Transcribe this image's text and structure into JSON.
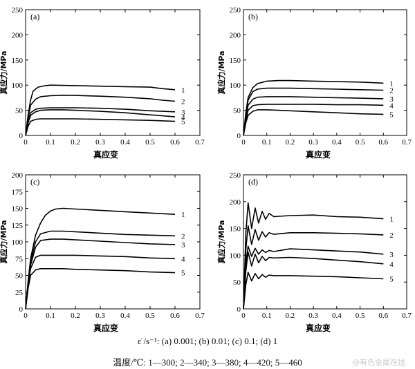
{
  "chart_data": [
    {
      "type": "line",
      "panel_label": "(a)",
      "xlabel": "真应变",
      "ylabel": "真应力/MPa",
      "xlim": [
        0,
        0.7
      ],
      "ylim": [
        0,
        250
      ],
      "xticks": [
        "0",
        "0.1",
        "0.2",
        "0.3",
        "0.4",
        "0.5",
        "0.6",
        "0.7"
      ],
      "yticks": [
        "0",
        "50",
        "100",
        "150",
        "200",
        "250"
      ],
      "series": [
        {
          "name": "1",
          "x": [
            0,
            0.01,
            0.02,
            0.03,
            0.05,
            0.08,
            0.1,
            0.15,
            0.2,
            0.3,
            0.4,
            0.5,
            0.55,
            0.6
          ],
          "y": [
            0,
            40,
            70,
            88,
            96,
            99,
            100,
            99.5,
            99,
            98,
            97,
            96,
            93,
            91
          ]
        },
        {
          "name": "2",
          "x": [
            0,
            0.01,
            0.02,
            0.04,
            0.06,
            0.1,
            0.15,
            0.2,
            0.3,
            0.4,
            0.5,
            0.55,
            0.6
          ],
          "y": [
            0,
            35,
            60,
            72,
            77,
            79,
            80,
            79.5,
            78,
            76,
            73,
            70,
            68
          ]
        },
        {
          "name": "3",
          "x": [
            0,
            0.01,
            0.02,
            0.04,
            0.06,
            0.1,
            0.15,
            0.2,
            0.3,
            0.4,
            0.5,
            0.6
          ],
          "y": [
            0,
            28,
            45,
            52,
            54,
            55,
            55,
            55,
            54,
            52,
            49,
            47
          ]
        },
        {
          "name": "4",
          "x": [
            0,
            0.01,
            0.02,
            0.04,
            0.06,
            0.1,
            0.15,
            0.2,
            0.3,
            0.4,
            0.5,
            0.55,
            0.6
          ],
          "y": [
            0,
            25,
            40,
            47,
            50,
            51,
            51,
            50,
            48,
            45,
            41,
            39,
            37
          ]
        },
        {
          "name": "5",
          "x": [
            0,
            0.01,
            0.02,
            0.04,
            0.06,
            0.1,
            0.15,
            0.2,
            0.3,
            0.4,
            0.5,
            0.6
          ],
          "y": [
            0,
            18,
            28,
            32,
            33,
            33,
            33,
            33,
            32,
            31,
            30,
            28
          ]
        }
      ]
    },
    {
      "type": "line",
      "panel_label": "(b)",
      "xlabel": "真应变",
      "ylabel": "真应力/MPa",
      "xlim": [
        0,
        0.7
      ],
      "ylim": [
        0,
        250
      ],
      "xticks": [
        "0",
        "0.1",
        "0.2",
        "0.3",
        "0.4",
        "0.5",
        "0.6",
        "0.7"
      ],
      "yticks": [
        "0",
        "50",
        "100",
        "150",
        "200",
        "250"
      ],
      "series": [
        {
          "name": "1",
          "x": [
            0,
            0.01,
            0.02,
            0.04,
            0.06,
            0.1,
            0.15,
            0.2,
            0.3,
            0.4,
            0.5,
            0.6
          ],
          "y": [
            0,
            45,
            75,
            95,
            103,
            108,
            109,
            109,
            108,
            107,
            106,
            104
          ]
        },
        {
          "name": "2",
          "x": [
            0,
            0.01,
            0.02,
            0.04,
            0.06,
            0.1,
            0.15,
            0.2,
            0.3,
            0.4,
            0.5,
            0.6
          ],
          "y": [
            0,
            40,
            70,
            87,
            92,
            94,
            94,
            94,
            93,
            92,
            91,
            90
          ]
        },
        {
          "name": "3",
          "x": [
            0,
            0.01,
            0.02,
            0.04,
            0.06,
            0.1,
            0.15,
            0.2,
            0.3,
            0.4,
            0.5,
            0.6
          ],
          "y": [
            0,
            35,
            60,
            72,
            76,
            77,
            77,
            77,
            76,
            75,
            74,
            73
          ]
        },
        {
          "name": "4",
          "x": [
            0,
            0.01,
            0.02,
            0.04,
            0.06,
            0.1,
            0.15,
            0.2,
            0.3,
            0.4,
            0.5,
            0.6
          ],
          "y": [
            0,
            30,
            50,
            59,
            61,
            62,
            62,
            62,
            62,
            61,
            61,
            60
          ]
        },
        {
          "name": "5",
          "x": [
            0,
            0.01,
            0.02,
            0.04,
            0.06,
            0.1,
            0.15,
            0.2,
            0.3,
            0.4,
            0.5,
            0.6
          ],
          "y": [
            0,
            25,
            40,
            48,
            51,
            51,
            50,
            49,
            47,
            45,
            43,
            42
          ]
        }
      ]
    },
    {
      "type": "line",
      "panel_label": "(c)",
      "xlabel": "真应变",
      "ylabel": "真应力/MPa",
      "xlim": [
        0,
        0.7
      ],
      "ylim": [
        0,
        200
      ],
      "xticks": [
        "0",
        "0.1",
        "0.2",
        "0.3",
        "0.4",
        "0.5",
        "0.6",
        "0.7"
      ],
      "yticks": [
        "0",
        "25",
        "50",
        "75",
        "100",
        "125",
        "150",
        "175",
        "200"
      ],
      "series": [
        {
          "name": "1",
          "x": [
            0,
            0.01,
            0.02,
            0.04,
            0.06,
            0.08,
            0.1,
            0.12,
            0.15,
            0.2,
            0.3,
            0.4,
            0.5,
            0.6
          ],
          "y": [
            0,
            40,
            75,
            110,
            128,
            140,
            146,
            149,
            150,
            149,
            147,
            145,
            143,
            141
          ]
        },
        {
          "name": "2",
          "x": [
            0,
            0.01,
            0.02,
            0.04,
            0.06,
            0.1,
            0.15,
            0.2,
            0.3,
            0.4,
            0.5,
            0.6
          ],
          "y": [
            0,
            40,
            70,
            100,
            112,
            116,
            116,
            115,
            113,
            111,
            110,
            109
          ]
        },
        {
          "name": "3",
          "x": [
            0,
            0.01,
            0.02,
            0.04,
            0.06,
            0.1,
            0.15,
            0.2,
            0.3,
            0.4,
            0.5,
            0.6
          ],
          "y": [
            0,
            38,
            65,
            92,
            102,
            104,
            104,
            103,
            101,
            99,
            97,
            96
          ]
        },
        {
          "name": "4",
          "x": [
            0,
            0.01,
            0.02,
            0.04,
            0.06,
            0.1,
            0.15,
            0.2,
            0.3,
            0.4,
            0.5,
            0.6
          ],
          "y": [
            0,
            35,
            60,
            77,
            80,
            80,
            80,
            80,
            79,
            78,
            76,
            75
          ]
        },
        {
          "name": "5",
          "x": [
            0,
            0.01,
            0.02,
            0.04,
            0.06,
            0.1,
            0.15,
            0.2,
            0.3,
            0.4,
            0.5,
            0.6
          ],
          "y": [
            0,
            30,
            50,
            58,
            60,
            60,
            60,
            59,
            58,
            57,
            55,
            54
          ]
        }
      ]
    },
    {
      "type": "line",
      "panel_label": "(d)",
      "xlabel": "真应变",
      "ylabel": "真应力/MPa",
      "xlim": [
        0,
        0.7
      ],
      "ylim": [
        0,
        250
      ],
      "xticks": [
        "0",
        "0.1",
        "0.2",
        "0.3",
        "0.4",
        "0.5",
        "0.6",
        "0.7"
      ],
      "yticks": [
        "0",
        "50",
        "100",
        "150",
        "200",
        "250"
      ],
      "series": [
        {
          "name": "1",
          "x": [
            0,
            0.01,
            0.02,
            0.035,
            0.05,
            0.065,
            0.08,
            0.095,
            0.11,
            0.13,
            0.2,
            0.3,
            0.4,
            0.5,
            0.6
          ],
          "y": [
            0,
            140,
            198,
            150,
            188,
            160,
            182,
            167,
            178,
            172,
            174,
            175,
            172,
            171,
            168
          ]
        },
        {
          "name": "2",
          "x": [
            0,
            0.01,
            0.02,
            0.035,
            0.05,
            0.065,
            0.08,
            0.095,
            0.11,
            0.13,
            0.2,
            0.3,
            0.4,
            0.5,
            0.6
          ],
          "y": [
            0,
            110,
            155,
            120,
            148,
            128,
            144,
            134,
            142,
            139,
            142,
            142,
            141,
            140,
            138
          ]
        },
        {
          "name": "3",
          "x": [
            0,
            0.01,
            0.02,
            0.035,
            0.05,
            0.065,
            0.08,
            0.095,
            0.11,
            0.13,
            0.2,
            0.3,
            0.4,
            0.5,
            0.6
          ],
          "y": [
            0,
            85,
            117,
            98,
            113,
            102,
            110,
            105,
            109,
            107,
            112,
            110,
            108,
            106,
            102
          ]
        },
        {
          "name": "4",
          "x": [
            0,
            0.01,
            0.02,
            0.035,
            0.05,
            0.065,
            0.08,
            0.095,
            0.11,
            0.13,
            0.2,
            0.3,
            0.4,
            0.5,
            0.6
          ],
          "y": [
            0,
            70,
            106,
            80,
            102,
            86,
            98,
            90,
            96,
            95,
            96,
            94,
            91,
            88,
            84
          ]
        },
        {
          "name": "5",
          "x": [
            0,
            0.01,
            0.02,
            0.035,
            0.05,
            0.065,
            0.08,
            0.095,
            0.11,
            0.13,
            0.2,
            0.3,
            0.4,
            0.5,
            0.6
          ],
          "y": [
            0,
            45,
            68,
            52,
            66,
            56,
            64,
            59,
            63,
            62,
            62,
            61,
            60,
            58,
            56
          ]
        }
      ]
    }
  ],
  "caption": {
    "rate": "ε̇ /s⁻¹: (a) 0.001; (b) 0.01; (c) 0.1; (d) 1",
    "temperature": "温度/℃: 1—300; 2—340; 3—380; 4—420; 5—460"
  },
  "watermark": "@有色金属在线"
}
